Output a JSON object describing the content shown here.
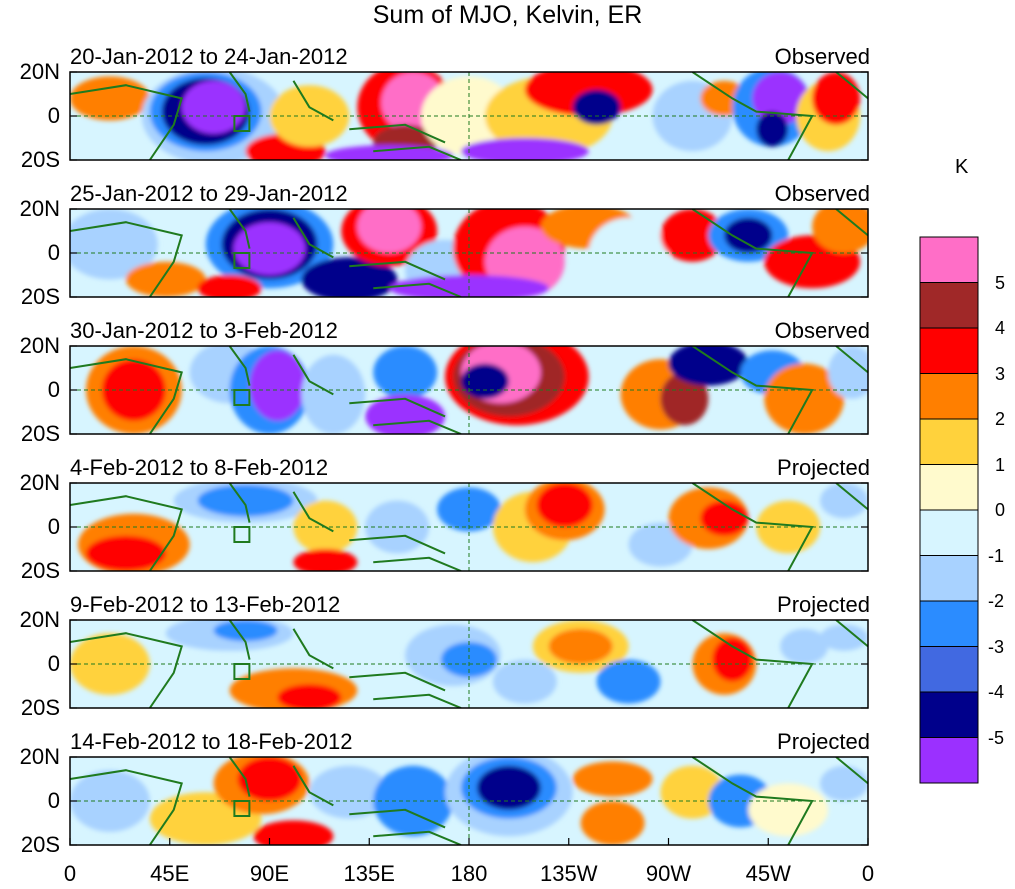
{
  "title": "Sum of MJO, Kelvin, ER",
  "panels": [
    {
      "date_range": "20-Jan-2012 to 24-Jan-2012",
      "status": "Observed"
    },
    {
      "date_range": "25-Jan-2012 to 29-Jan-2012",
      "status": "Observed"
    },
    {
      "date_range": "30-Jan-2012 to 3-Feb-2012",
      "status": "Observed"
    },
    {
      "date_range": "4-Feb-2012 to 8-Feb-2012",
      "status": "Projected"
    },
    {
      "date_range": "9-Feb-2012 to 13-Feb-2012",
      "status": "Projected"
    },
    {
      "date_range": "14-Feb-2012 to 18-Feb-2012",
      "status": "Projected"
    }
  ],
  "lat_labels": [
    "20N",
    "0",
    "20S"
  ],
  "lon_labels": [
    "0",
    "45E",
    "90E",
    "135E",
    "180",
    "135W",
    "90W",
    "45W",
    "0"
  ],
  "colorbar": {
    "unit": "K",
    "labels": [
      "5",
      "4",
      "3",
      "2",
      "1",
      "0",
      "-1",
      "-2",
      "-3",
      "-4",
      "-5"
    ],
    "colors": [
      "#ff6ec7",
      "#a02828",
      "#ff0000",
      "#ff7f00",
      "#ffd23c",
      "#fffacd",
      "#d7f5ff",
      "#a8d2ff",
      "#2b8cff",
      "#4169e1",
      "#00008b",
      "#9b30ff"
    ]
  }
}
